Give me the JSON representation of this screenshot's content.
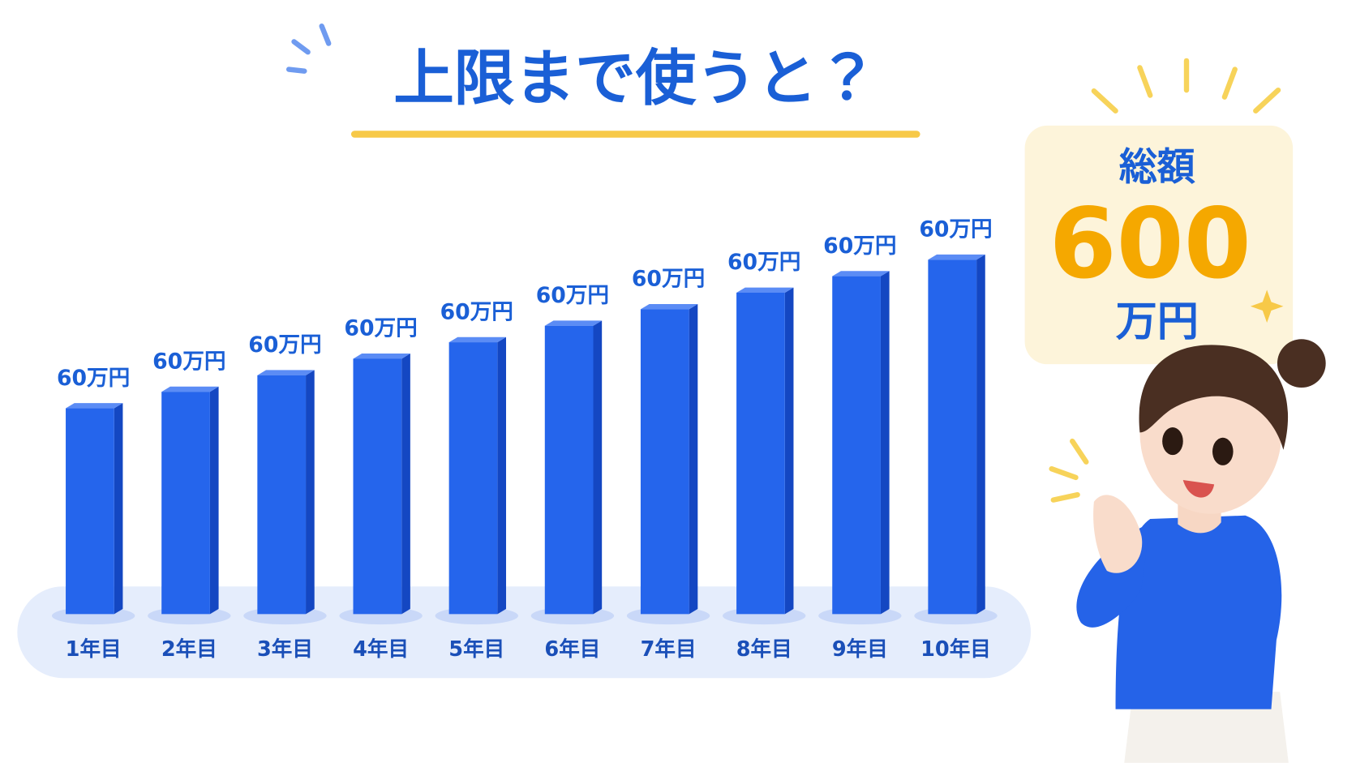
{
  "title": "上限まで使うと？",
  "bars": [
    {
      "label": "60万円",
      "category": "1年目"
    },
    {
      "label": "60万円",
      "category": "2年目"
    },
    {
      "label": "60万円",
      "category": "3年目"
    },
    {
      "label": "60万円",
      "category": "4年目"
    },
    {
      "label": "60万円",
      "category": "5年目"
    },
    {
      "label": "60万円",
      "category": "6年目"
    },
    {
      "label": "60万円",
      "category": "7年目"
    },
    {
      "label": "60万円",
      "category": "8年目"
    },
    {
      "label": "60万円",
      "category": "9年目"
    },
    {
      "label": "60万円",
      "category": "10年目"
    }
  ],
  "total": {
    "heading": "総額",
    "amount": "600",
    "unit": "万円"
  }
}
